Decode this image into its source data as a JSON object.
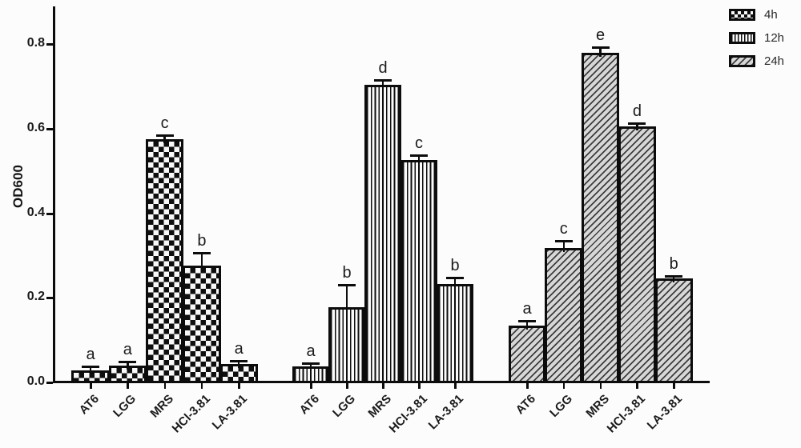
{
  "chart_data": {
    "type": "bar",
    "title": "",
    "xlabel": "",
    "ylabel": "OD600",
    "ylim": [
      0,
      0.9
    ],
    "yticks": [
      0,
      0.2,
      0.4,
      0.6,
      0.8
    ],
    "ytick_labels": [
      "0.0",
      "0.2",
      "0.4",
      "0.6",
      "0.8"
    ],
    "categories": [
      "AT6",
      "LGG",
      "MRS",
      "HCl-3.81",
      "LA-3.81"
    ],
    "series": [
      {
        "name": "4h",
        "pattern": "checker",
        "values": [
          0.028,
          0.04,
          0.575,
          0.277,
          0.044
        ],
        "errors": [
          0.007,
          0.007,
          0.008,
          0.028,
          0.005
        ],
        "letters": [
          "a",
          "a",
          "c",
          "b",
          "a"
        ]
      },
      {
        "name": "12h",
        "pattern": "vstripe",
        "values": [
          0.038,
          0.178,
          0.703,
          0.526,
          0.233
        ],
        "errors": [
          0.006,
          0.05,
          0.01,
          0.01,
          0.012
        ],
        "letters": [
          "a",
          "b",
          "d",
          "c",
          "b"
        ]
      },
      {
        "name": "24h",
        "pattern": "dstripe",
        "values": [
          0.135,
          0.318,
          0.78,
          0.605,
          0.245
        ],
        "errors": [
          0.009,
          0.015,
          0.01,
          0.005,
          0.004
        ],
        "letters": [
          "a",
          "c",
          "e",
          "d",
          "b"
        ]
      }
    ],
    "legend": {
      "position": "top-right",
      "entries": [
        "4h",
        "12h",
        "24h"
      ]
    },
    "grid": false
  },
  "colors": {
    "ink": "#0c0c0c",
    "text": "#1a1a1a",
    "background": "#fcfcfc",
    "hatch_fill": "#d7d7d7"
  }
}
